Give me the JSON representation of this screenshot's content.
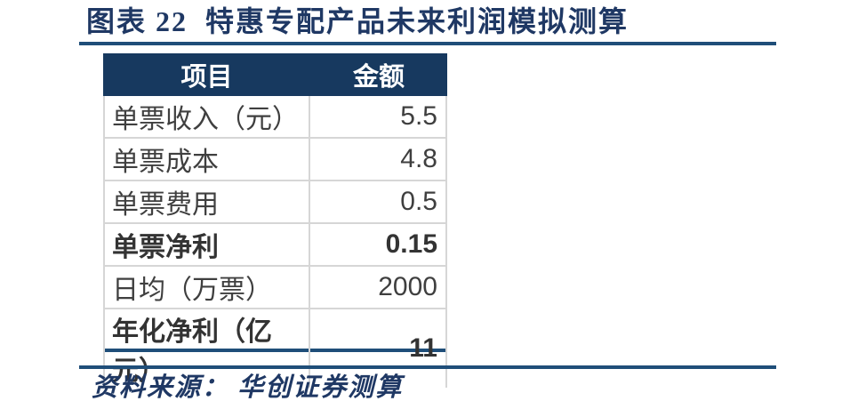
{
  "title": {
    "label": "图表 22  特惠专配产品未来利润模拟测算"
  },
  "table": {
    "columns": [
      "项目",
      "金额"
    ],
    "rows": [
      {
        "item": "单票收入（元）",
        "value": "5.5",
        "bold": false
      },
      {
        "item": "单票成本",
        "value": "4.8",
        "bold": false
      },
      {
        "item": "单票费用",
        "value": "0.5",
        "bold": false
      },
      {
        "item": "单票净利",
        "value": "0.15",
        "bold": true
      },
      {
        "item": "日均（万票）",
        "value": "2000",
        "bold": false
      },
      {
        "item": "年化净利（亿元）",
        "value": "11",
        "bold": true
      }
    ]
  },
  "source": {
    "label": "资料来源： 华创证券测算"
  },
  "colors": {
    "header_bg": "#17395F",
    "title_text": "#1F3864",
    "rule": "#1F4E79",
    "cell_text": "#3F3F3F",
    "row_border": "#D6D6D6"
  }
}
